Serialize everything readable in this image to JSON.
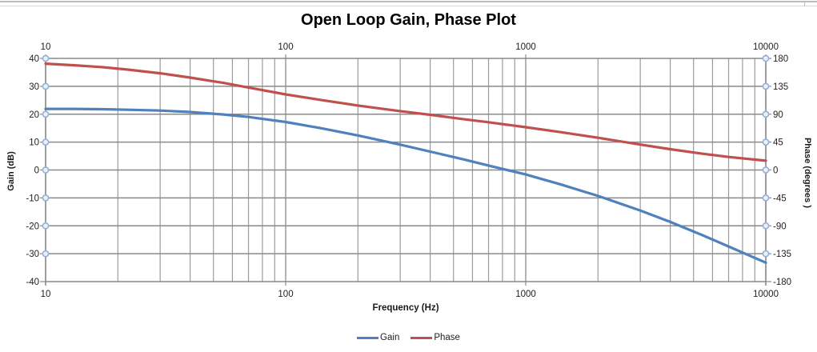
{
  "chart": {
    "title": "Open Loop Gain, Phase Plot",
    "x_axis": {
      "label": "Frequency (Hz)",
      "scale": "log",
      "min": 10,
      "max": 10000,
      "tick_labels": [
        "10",
        "100",
        "1000",
        "10000"
      ],
      "tick_values": [
        10,
        100,
        1000,
        10000
      ]
    },
    "y_left": {
      "label": "Gain (dB)",
      "min": -40,
      "max": 40,
      "tick_values": [
        40,
        30,
        20,
        10,
        0,
        -10,
        -20,
        -30,
        -40
      ],
      "marker_values": [
        40,
        30,
        20,
        10,
        0,
        -10,
        -20,
        -30
      ]
    },
    "y_right": {
      "label": "Phase (degrees )",
      "min": -180,
      "max": 180,
      "tick_values": [
        180,
        135,
        90,
        45,
        0,
        -45,
        -90,
        -135,
        -180
      ],
      "marker_values": [
        180,
        135,
        90,
        45,
        0,
        -45,
        -90,
        -135
      ]
    },
    "legend": [
      {
        "label": "Gain",
        "color": "#4F81BD"
      },
      {
        "label": "Phase",
        "color": "#C0504D"
      }
    ],
    "colors": {
      "gain_line": "#4F81BD",
      "phase_line": "#C0504D",
      "gridline": "#8a8a8a",
      "minor_gridline": "#9b9b9b",
      "marker_stroke": "#92b1d4",
      "marker_fill": "#e9f0f8",
      "tick_text": "#1f1f1f"
    }
  },
  "chart_data": {
    "type": "line",
    "title": "Open Loop Gain, Phase Plot",
    "xlabel": "Frequency (Hz)",
    "x_scale": "log",
    "xlim": [
      10,
      10000
    ],
    "grid": true,
    "legend_position": "bottom",
    "x": [
      10,
      13,
      17,
      22,
      30,
      40,
      55,
      70,
      100,
      140,
      200,
      300,
      400,
      550,
      700,
      1000,
      1400,
      2000,
      3000,
      4000,
      5500,
      7000,
      10000
    ],
    "series": [
      {
        "name": "Gain",
        "axis": "left",
        "ylabel": "Gain (dB)",
        "ylim": [
          -40,
          40
        ],
        "color": "#4F81BD",
        "values": [
          21.9,
          21.9,
          21.8,
          21.6,
          21.3,
          20.8,
          19.9,
          19.0,
          17.2,
          15.0,
          12.4,
          9.1,
          6.6,
          3.8,
          1.6,
          -1.6,
          -5.2,
          -9.3,
          -14.5,
          -18.6,
          -23.5,
          -27.4,
          -33.2
        ]
      },
      {
        "name": "Phase",
        "axis": "right",
        "ylabel": "Phase (degrees )",
        "ylim": [
          -180,
          180
        ],
        "color": "#C0504D",
        "values": [
          171.5,
          169.0,
          166.0,
          162.0,
          156.0,
          149.0,
          140.5,
          133.0,
          122.0,
          113.0,
          104.0,
          95.0,
          89.0,
          82.0,
          77.0,
          69.0,
          61.0,
          52.0,
          41.0,
          33.5,
          26.0,
          21.0,
          15.0
        ]
      }
    ]
  }
}
